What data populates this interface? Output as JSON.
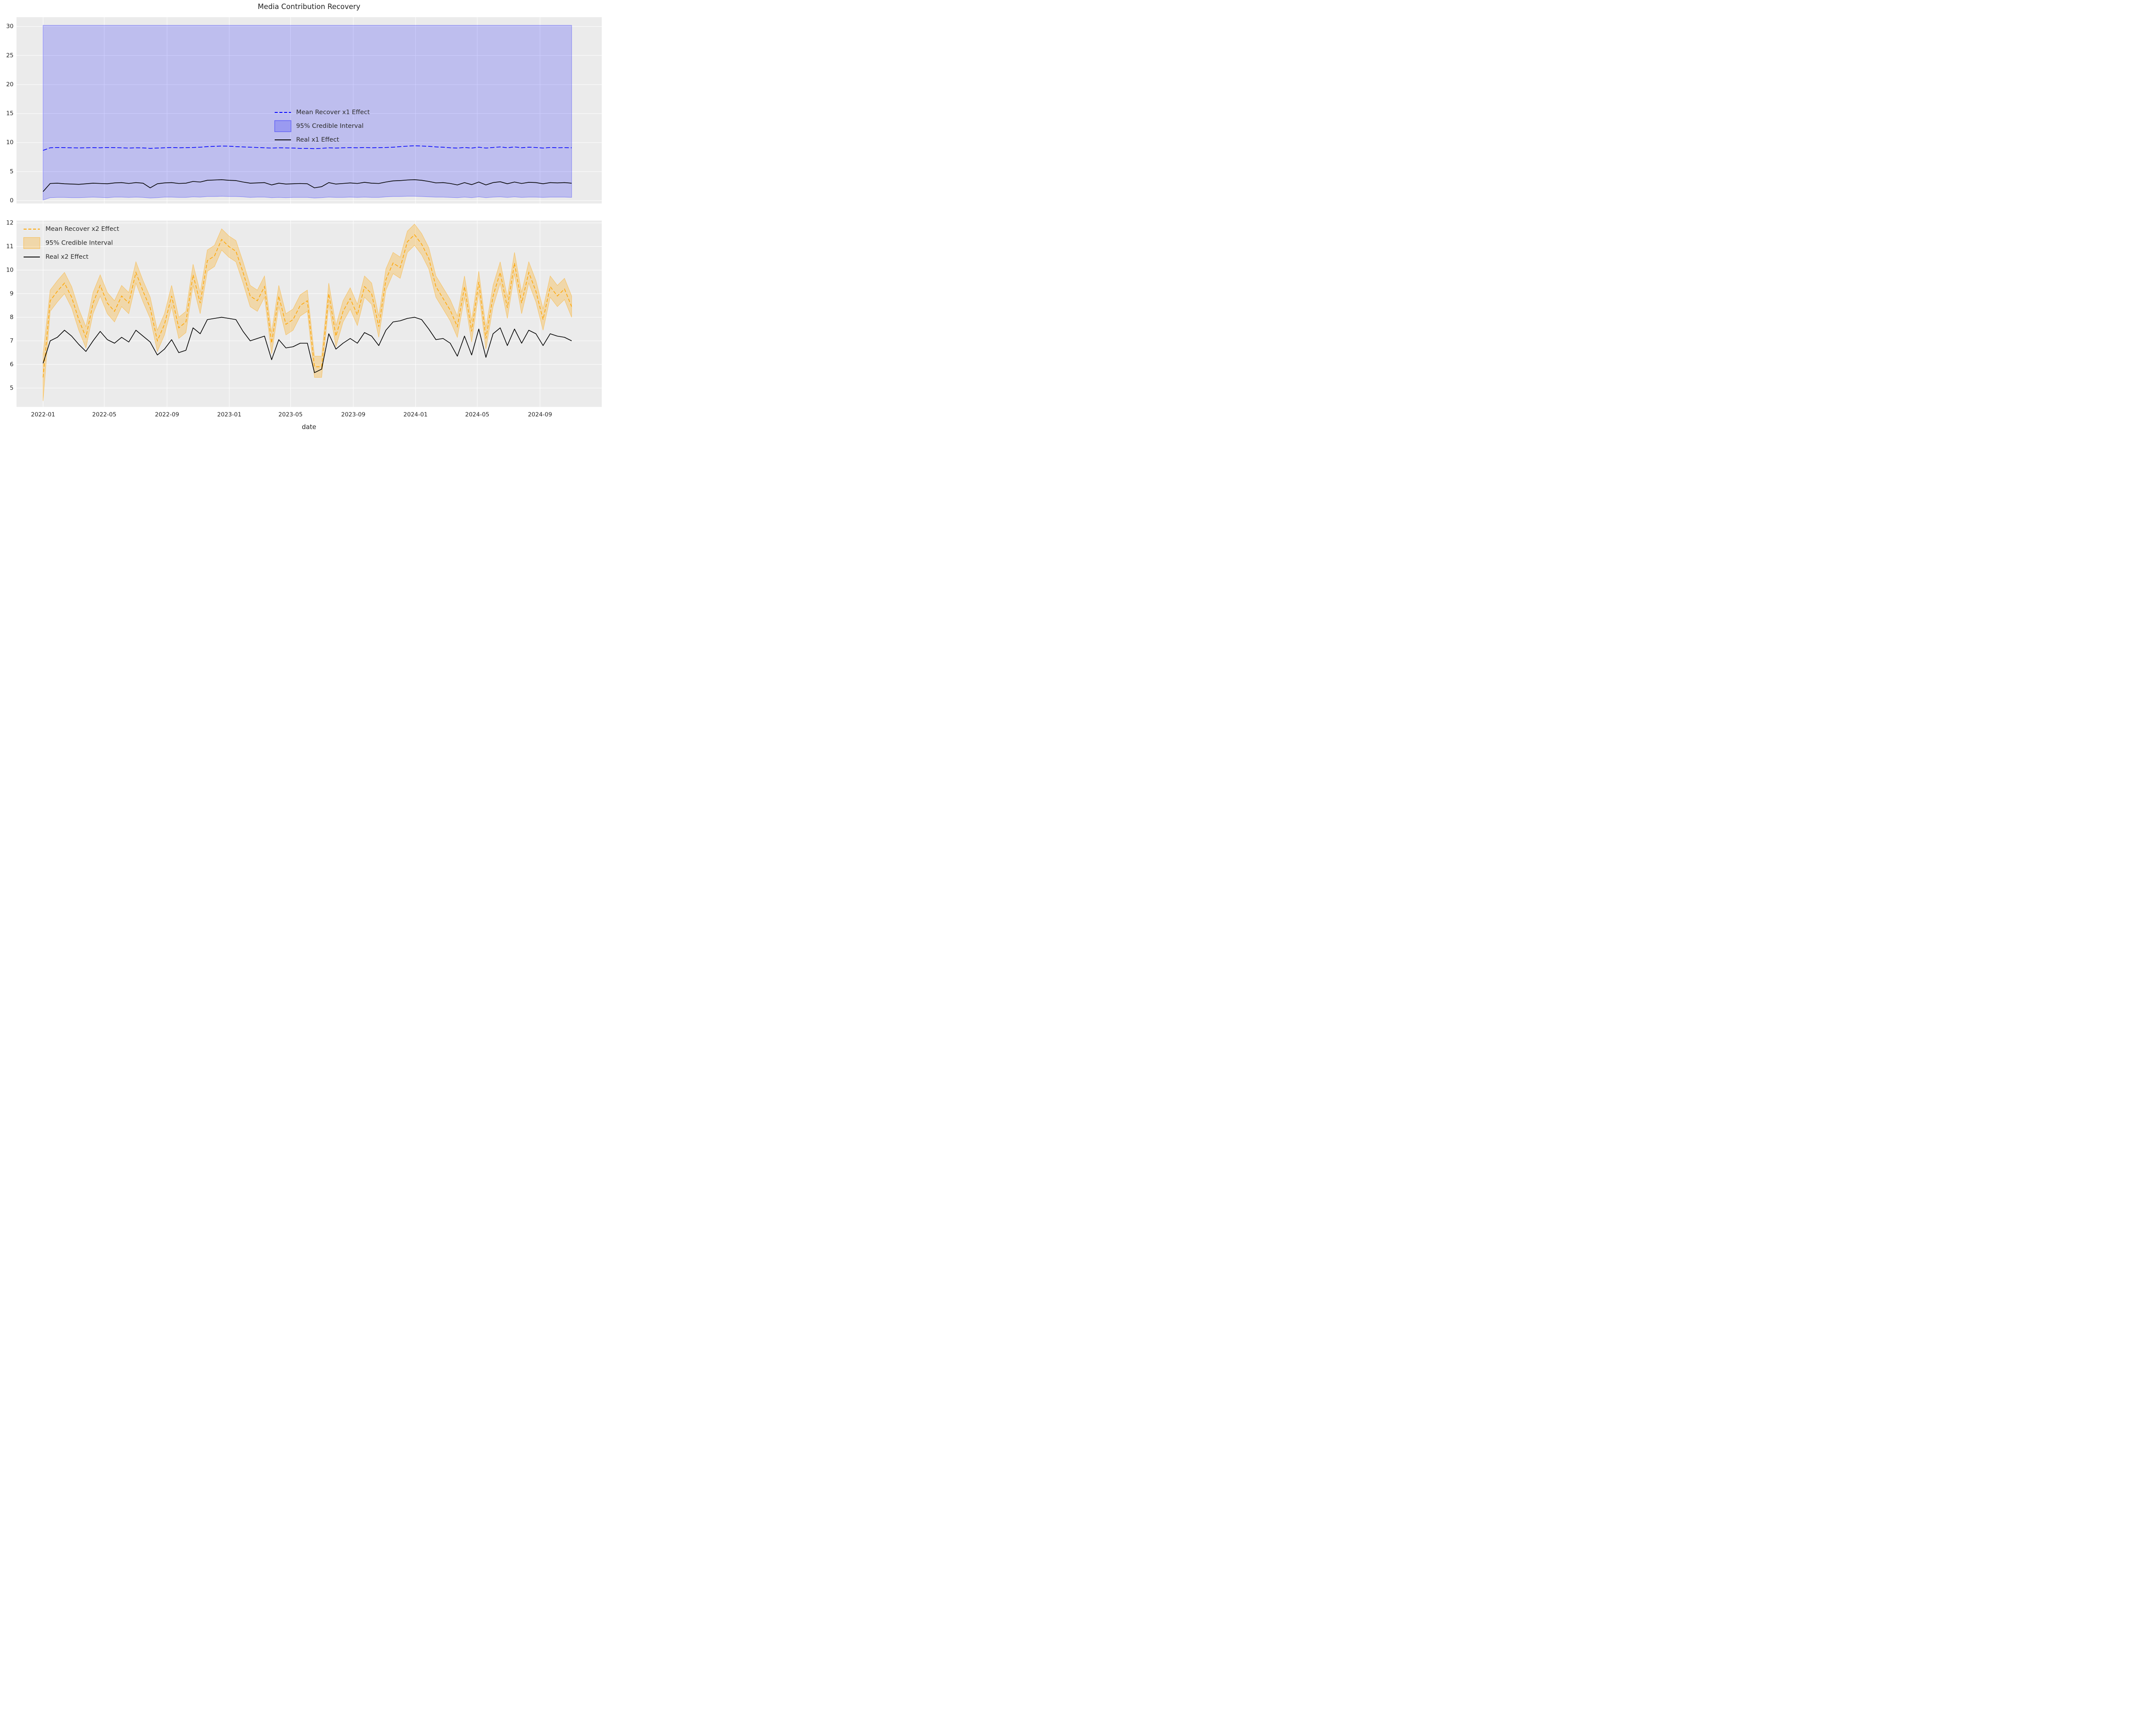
{
  "figure": {
    "background": "#ffffff",
    "axes_background": "#ebebeb",
    "grid_color": "#ffffff",
    "text_color": "#262626",
    "accent_blue": "#0000ff",
    "accent_orange": "#ffa500",
    "line_black": "#000000"
  },
  "chart_data": {
    "type": "line",
    "title": "Media Contribution Recovery",
    "xlabel": "date",
    "grid": true,
    "x_tick_dates": [
      "2022-01-01",
      "2022-05-01",
      "2022-09-01",
      "2023-01-01",
      "2023-05-01",
      "2023-09-01",
      "2024-01-01",
      "2024-05-01",
      "2024-09-01"
    ],
    "x_tick_labels": [
      "2022-01",
      "2022-05",
      "2022-09",
      "2023-01",
      "2023-05",
      "2023-09",
      "2024-01",
      "2024-05",
      "2024-09"
    ],
    "xlim": [
      "2021-11-10",
      "2024-12-31"
    ],
    "dates": [
      "2022-01-01",
      "2022-01-15",
      "2022-01-29",
      "2022-02-12",
      "2022-02-26",
      "2022-03-12",
      "2022-03-26",
      "2022-04-09",
      "2022-04-23",
      "2022-05-07",
      "2022-05-21",
      "2022-06-04",
      "2022-06-18",
      "2022-07-02",
      "2022-07-16",
      "2022-07-30",
      "2022-08-13",
      "2022-08-27",
      "2022-09-10",
      "2022-09-24",
      "2022-10-08",
      "2022-10-22",
      "2022-11-05",
      "2022-11-19",
      "2022-12-03",
      "2022-12-17",
      "2022-12-31",
      "2023-01-14",
      "2023-01-28",
      "2023-02-11",
      "2023-02-25",
      "2023-03-11",
      "2023-03-25",
      "2023-04-08",
      "2023-04-22",
      "2023-05-06",
      "2023-05-20",
      "2023-06-03",
      "2023-06-17",
      "2023-07-01",
      "2023-07-15",
      "2023-07-29",
      "2023-08-12",
      "2023-08-26",
      "2023-09-09",
      "2023-09-23",
      "2023-10-07",
      "2023-10-21",
      "2023-11-04",
      "2023-11-18",
      "2023-12-02",
      "2023-12-16",
      "2023-12-30",
      "2024-01-13",
      "2024-01-27",
      "2024-02-10",
      "2024-02-24",
      "2024-03-09",
      "2024-03-23",
      "2024-04-06",
      "2024-04-20",
      "2024-05-04",
      "2024-05-18",
      "2024-06-01",
      "2024-06-15",
      "2024-06-29",
      "2024-07-13",
      "2024-07-27",
      "2024-08-10",
      "2024-08-24",
      "2024-09-07",
      "2024-09-21",
      "2024-10-05",
      "2024-10-19",
      "2024-11-02"
    ],
    "subplots": [
      {
        "name": "x1",
        "ylim": [
          -0.5,
          31.6
        ],
        "yticks": [
          0,
          5,
          10,
          15,
          20,
          25,
          30
        ],
        "legend_loc": "center",
        "legend": [
          {
            "label": "Mean Recover x1 Effect",
            "handle": "dashed-line",
            "color": "#0000ff"
          },
          {
            "label": "95% Credible Interval",
            "handle": "patch",
            "color": "#0000ff"
          },
          {
            "label": "Real x1 Effect",
            "handle": "line",
            "color": "#000000"
          }
        ],
        "mean_series": {
          "name": "Mean Recover x1 Effect",
          "color": "#0000ff",
          "style": "dashed",
          "values": [
            8.65,
            9.1,
            9.15,
            9.12,
            9.1,
            9.08,
            9.1,
            9.12,
            9.1,
            9.15,
            9.12,
            9.1,
            9.05,
            9.1,
            9.08,
            9.0,
            9.05,
            9.1,
            9.15,
            9.1,
            9.12,
            9.15,
            9.2,
            9.3,
            9.35,
            9.4,
            9.38,
            9.3,
            9.25,
            9.2,
            9.15,
            9.1,
            9.05,
            9.1,
            9.08,
            9.05,
            9.0,
            9.0,
            8.95,
            9.0,
            9.1,
            9.05,
            9.1,
            9.12,
            9.1,
            9.15,
            9.1,
            9.12,
            9.15,
            9.2,
            9.3,
            9.38,
            9.45,
            9.4,
            9.35,
            9.25,
            9.2,
            9.1,
            9.05,
            9.15,
            9.05,
            9.2,
            9.05,
            9.15,
            9.25,
            9.1,
            9.25,
            9.1,
            9.2,
            9.15,
            9.05,
            9.15,
            9.1,
            9.12,
            9.1
          ]
        },
        "real_series": {
          "name": "Real x1 Effect",
          "color": "#000000",
          "style": "solid",
          "values": [
            1.55,
            2.95,
            3.0,
            2.9,
            2.85,
            2.8,
            2.9,
            3.0,
            2.95,
            2.9,
            3.05,
            3.1,
            2.95,
            3.1,
            3.0,
            2.2,
            2.9,
            3.05,
            3.1,
            2.95,
            3.0,
            3.3,
            3.2,
            3.5,
            3.55,
            3.6,
            3.5,
            3.45,
            3.2,
            3.0,
            3.05,
            3.1,
            2.7,
            3.0,
            2.85,
            2.9,
            2.95,
            2.9,
            2.2,
            2.4,
            3.1,
            2.85,
            2.95,
            3.05,
            2.95,
            3.15,
            3.0,
            2.95,
            3.2,
            3.4,
            3.45,
            3.55,
            3.6,
            3.5,
            3.3,
            3.05,
            3.1,
            2.95,
            2.7,
            3.1,
            2.75,
            3.2,
            2.7,
            3.1,
            3.25,
            2.9,
            3.2,
            2.95,
            3.15,
            3.1,
            2.9,
            3.1,
            3.05,
            3.1,
            3.0
          ]
        },
        "ci_band": {
          "name": "95% Credible Interval",
          "color": "#0000ff",
          "fill_alpha": 0.19,
          "edge_alpha": 0.4,
          "upper_const": 30.2,
          "lower": [
            0.1,
            0.5,
            0.55,
            0.55,
            0.5,
            0.5,
            0.55,
            0.6,
            0.55,
            0.5,
            0.6,
            0.6,
            0.55,
            0.6,
            0.55,
            0.45,
            0.5,
            0.6,
            0.6,
            0.55,
            0.55,
            0.65,
            0.6,
            0.7,
            0.7,
            0.75,
            0.7,
            0.7,
            0.65,
            0.55,
            0.6,
            0.6,
            0.5,
            0.55,
            0.5,
            0.55,
            0.55,
            0.55,
            0.45,
            0.5,
            0.6,
            0.55,
            0.55,
            0.6,
            0.55,
            0.6,
            0.55,
            0.55,
            0.65,
            0.7,
            0.7,
            0.75,
            0.75,
            0.7,
            0.65,
            0.6,
            0.6,
            0.55,
            0.5,
            0.6,
            0.5,
            0.65,
            0.5,
            0.6,
            0.65,
            0.55,
            0.65,
            0.55,
            0.6,
            0.6,
            0.55,
            0.6,
            0.6,
            0.6,
            0.55
          ]
        }
      },
      {
        "name": "x2",
        "ylim": [
          4.2,
          12.1
        ],
        "yticks": [
          5,
          6,
          7,
          8,
          9,
          10,
          11,
          12
        ],
        "legend_loc": "upper left",
        "legend": [
          {
            "label": "Mean Recover x2 Effect",
            "handle": "dashed-line",
            "color": "#ffa500"
          },
          {
            "label": "95% Credible Interval",
            "handle": "patch",
            "color": "#ffa500"
          },
          {
            "label": "Real x2 Effect",
            "handle": "line",
            "color": "#000000"
          }
        ],
        "mean_series": {
          "name": "Mean Recover x2 Effect",
          "color": "#ffa500",
          "style": "dashed",
          "values": [
            5.45,
            8.7,
            9.1,
            9.45,
            8.85,
            7.9,
            7.15,
            8.6,
            9.35,
            8.6,
            8.25,
            8.9,
            8.6,
            9.9,
            9.1,
            8.4,
            7.0,
            7.7,
            8.9,
            7.55,
            7.8,
            9.8,
            8.6,
            10.4,
            10.6,
            11.3,
            11.0,
            10.8,
            9.9,
            8.9,
            8.7,
            9.3,
            6.9,
            8.9,
            7.7,
            7.9,
            8.5,
            8.7,
            5.9,
            5.9,
            9.0,
            7.2,
            8.25,
            8.8,
            8.1,
            9.3,
            9.0,
            7.6,
            9.6,
            10.3,
            10.1,
            11.2,
            11.5,
            11.1,
            10.5,
            9.3,
            8.8,
            8.3,
            7.6,
            9.3,
            7.4,
            9.5,
            7.1,
            8.9,
            9.9,
            8.4,
            10.3,
            8.6,
            9.9,
            9.1,
            7.9,
            9.3,
            8.9,
            9.2,
            8.45
          ]
        },
        "real_series": {
          "name": "Real x2 Effect",
          "color": "#000000",
          "style": "solid",
          "values": [
            6.05,
            7.0,
            7.15,
            7.45,
            7.2,
            6.85,
            6.55,
            7.0,
            7.4,
            7.05,
            6.9,
            7.15,
            6.95,
            7.45,
            7.2,
            6.95,
            6.4,
            6.65,
            7.05,
            6.5,
            6.6,
            7.55,
            7.3,
            7.9,
            7.95,
            8.0,
            7.95,
            7.9,
            7.4,
            7.0,
            7.1,
            7.2,
            6.2,
            7.05,
            6.7,
            6.75,
            6.9,
            6.9,
            5.65,
            5.8,
            7.3,
            6.65,
            6.9,
            7.1,
            6.9,
            7.35,
            7.2,
            6.8,
            7.45,
            7.8,
            7.85,
            7.95,
            8.0,
            7.9,
            7.5,
            7.05,
            7.1,
            6.9,
            6.35,
            7.2,
            6.4,
            7.5,
            6.3,
            7.3,
            7.55,
            6.8,
            7.5,
            6.9,
            7.45,
            7.3,
            6.8,
            7.3,
            7.2,
            7.15,
            7.0
          ]
        },
        "ci_band": {
          "name": "95% Credible Interval",
          "color": "#ffa500",
          "fill_alpha": 0.28,
          "edge_alpha": 0.5,
          "halfwidth": 0.45,
          "halfwidth_first": 1.0
        }
      }
    ]
  }
}
